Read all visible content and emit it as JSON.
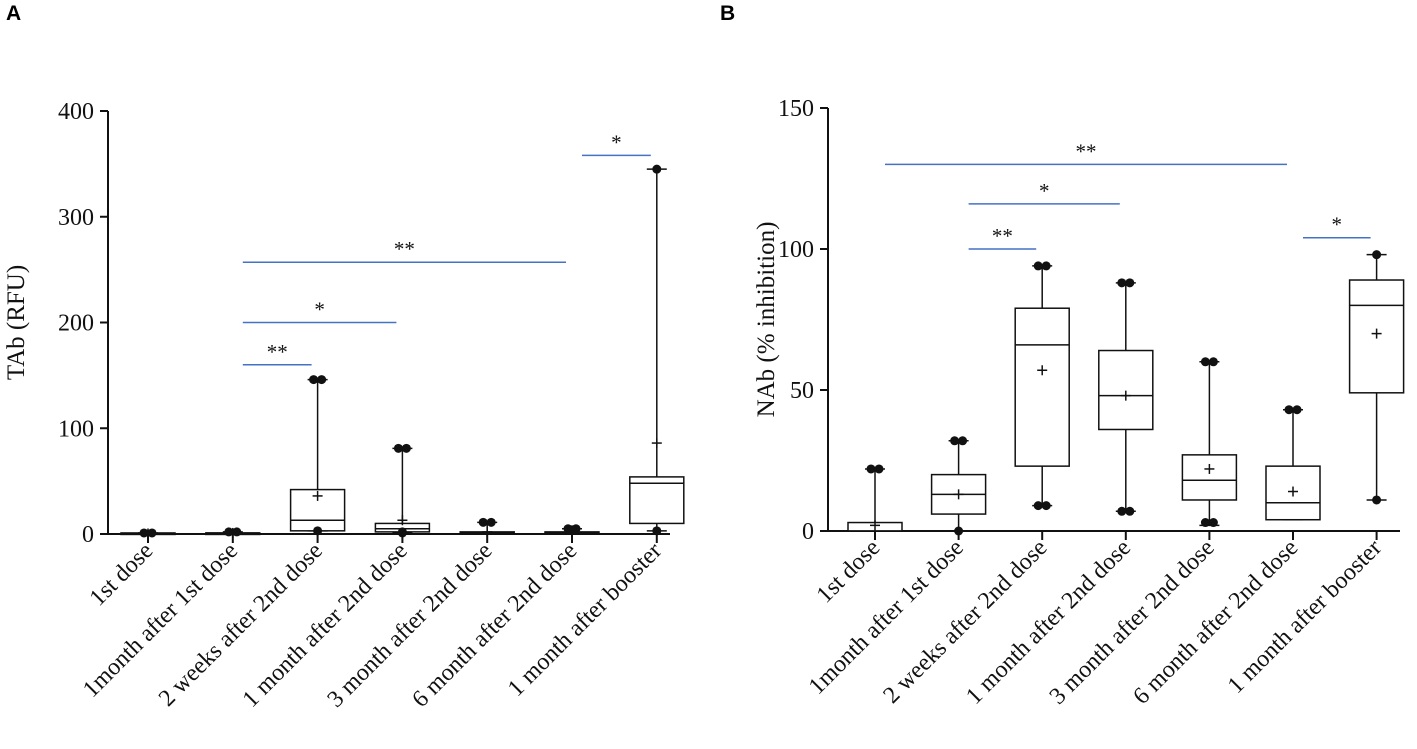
{
  "chart_data": [
    {
      "type": "box",
      "panel_label": "A",
      "ylabel": "TAb (RFU)",
      "xlabel": "",
      "ylim": [
        0,
        400
      ],
      "yticks": [
        0,
        100,
        200,
        300,
        400
      ],
      "categories": [
        "1st dose",
        "1month after 1st dose",
        "2 weeks after 2nd dose",
        "1 month after 2nd dose",
        "3 month after 2nd dose",
        "6 month after 2nd dose",
        "1 month after booster"
      ],
      "boxes": [
        {
          "min": 0,
          "q1": 0,
          "median": 0,
          "q3": 1,
          "max": 1,
          "mean": 0.5,
          "outliers": [
            1,
            1
          ]
        },
        {
          "min": 0,
          "q1": 0,
          "median": 1,
          "q3": 1,
          "max": 2,
          "mean": 1,
          "outliers": [
            2,
            2
          ]
        },
        {
          "min": 3,
          "q1": 3,
          "median": 13,
          "q3": 42,
          "max": 146,
          "mean": 36,
          "outliers": [
            146,
            146,
            3
          ]
        },
        {
          "min": 1,
          "q1": 2,
          "median": 5,
          "q3": 10,
          "max": 81,
          "mean": 13,
          "outliers": [
            81,
            81,
            2,
            1
          ]
        },
        {
          "min": 0,
          "q1": 0,
          "median": 1,
          "q3": 2,
          "max": 11,
          "mean": 2,
          "outliers": [
            11,
            11
          ]
        },
        {
          "min": 0,
          "q1": 0,
          "median": 1,
          "q3": 2,
          "max": 5,
          "mean": 2,
          "outliers": [
            5,
            5,
            4
          ]
        },
        {
          "min": 3,
          "q1": 10,
          "median": 48,
          "q3": 54,
          "max": 345,
          "mean": 86,
          "outliers": [
            345,
            3
          ]
        }
      ],
      "significance": [
        {
          "from": 1,
          "to": 2,
          "label": "**",
          "y": 160
        },
        {
          "from": 1,
          "to": 3,
          "label": "*",
          "y": 200
        },
        {
          "from": 1,
          "to": 5,
          "label": "**",
          "y": 257
        },
        {
          "from": 5,
          "to": 6,
          "label": "*",
          "y": 358
        }
      ]
    },
    {
      "type": "box",
      "panel_label": "B",
      "ylabel": "NAb (% inhibition)",
      "xlabel": "",
      "ylim": [
        0,
        150
      ],
      "yticks": [
        0,
        50,
        100,
        150
      ],
      "categories": [
        "1st dose",
        "1month after 1st dose",
        "2 weeks after 2nd dose",
        "1 month after 2nd dose",
        "3 month after 2nd dose",
        "6 month after 2nd dose",
        "1 month after booster"
      ],
      "boxes": [
        {
          "min": 0,
          "q1": 0,
          "median": 0,
          "q3": 3,
          "max": 22,
          "mean": 2,
          "outliers": [
            22,
            22
          ]
        },
        {
          "min": 0,
          "q1": 6,
          "median": 13,
          "q3": 20,
          "max": 32,
          "mean": 13,
          "outliers": [
            32,
            32,
            0
          ]
        },
        {
          "min": 9,
          "q1": 23,
          "median": 66,
          "q3": 79,
          "max": 94,
          "mean": 57,
          "outliers": [
            94,
            94,
            9,
            9
          ]
        },
        {
          "min": 7,
          "q1": 36,
          "median": 48,
          "q3": 64,
          "max": 88,
          "mean": 48,
          "outliers": [
            88,
            88,
            7,
            7
          ]
        },
        {
          "min": 2,
          "q1": 11,
          "median": 18,
          "q3": 27,
          "max": 60,
          "mean": 22,
          "outliers": [
            60,
            60,
            3,
            3
          ]
        },
        {
          "min": 4,
          "q1": 4,
          "median": 10,
          "q3": 23,
          "max": 43,
          "mean": 14,
          "outliers": [
            43,
            43
          ]
        },
        {
          "min": 11,
          "q1": 49,
          "median": 80,
          "q3": 89,
          "max": 98,
          "mean": 70,
          "outliers": [
            98,
            11
          ]
        }
      ],
      "significance": [
        {
          "from": 0,
          "to": 5,
          "label": "**",
          "y": 130
        },
        {
          "from": 1,
          "to": 3,
          "label": "*",
          "y": 116
        },
        {
          "from": 1,
          "to": 2,
          "label": "**",
          "y": 100
        },
        {
          "from": 5,
          "to": 6,
          "label": "*",
          "y": 104
        }
      ]
    }
  ],
  "colors": {
    "axis": "#111111",
    "box": "#111111",
    "significance_line": "#4472c4"
  }
}
